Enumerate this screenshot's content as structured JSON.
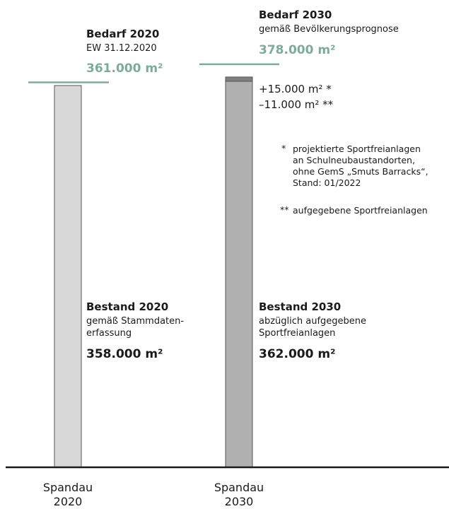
{
  "chart_data": {
    "type": "bar",
    "categories": [
      "Spandau\n2020",
      "Spandau\n2030"
    ],
    "unit": "m²",
    "series": [
      {
        "values": [
          358000,
          362000
        ]
      },
      {
        "values": [
          null,
          4000
        ]
      }
    ],
    "demand": [
      361000,
      378000
    ],
    "ylim": [
      0,
      380000
    ],
    "bars": [
      {
        "category_line1": "Spandau",
        "category_line2": "2020",
        "bestand_title": "Bestand 2020",
        "bestand_sub1": "gemäß Stammdaten-",
        "bestand_sub2": "erfassung",
        "bestand_value": "358.000 m²",
        "bedarf_title": "Bedarf 2020",
        "bedarf_sub": "EW 31.12.2020",
        "bedarf_value": "361.000 m²"
      },
      {
        "category_line1": "Spandau",
        "category_line2": "2030",
        "bestand_title": "Bestand 2030",
        "bestand_sub1": "abzüglich aufgegebene",
        "bestand_sub2": "Sportfreianlagen",
        "bestand_value": "362.000 m²",
        "bedarf_title": "Bedarf 2030",
        "bedarf_sub": "gemäß Bevölkerungsprognose",
        "bedarf_value": "378.000 m²",
        "plus_label": "+15.000 m² *",
        "minus_label": "–11.000 m² **"
      }
    ],
    "footnotes": {
      "star1_marker": "*",
      "star1_line1": "projektierte Sportfreianlagen",
      "star1_line2": "an Schulneubaustandorten,",
      "star1_line3": "ohne GemS „Smuts Barracks“,",
      "star1_line4": "Stand: 01/2022",
      "star2_marker": "**",
      "star2_line1": "aufgegebene Sportfreianlagen"
    },
    "colors": {
      "bar_2020": "#d8d8d8",
      "bar_2030": "#b0b0b0",
      "bar_top_2030": "#808080",
      "demand_line": "#7aac9c",
      "axis": "#1a1a1a"
    }
  }
}
